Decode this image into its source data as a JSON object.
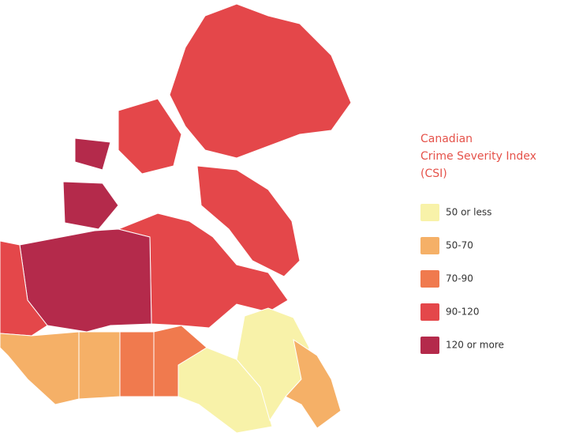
{
  "legend": {
    "title_lines": [
      "Canadian",
      "Crime Severity Index",
      "(CSI)"
    ],
    "title_color": "#e5524a",
    "items": [
      {
        "label": "50 or less",
        "color": "#f8f2a9"
      },
      {
        "label": "50-70",
        "color": "#f5b067"
      },
      {
        "label": "70-90",
        "color": "#f07a4e"
      },
      {
        "label": "90-120",
        "color": "#e4474a"
      },
      {
        "label": "120 or more",
        "color": "#b42a4b"
      }
    ]
  }
}
